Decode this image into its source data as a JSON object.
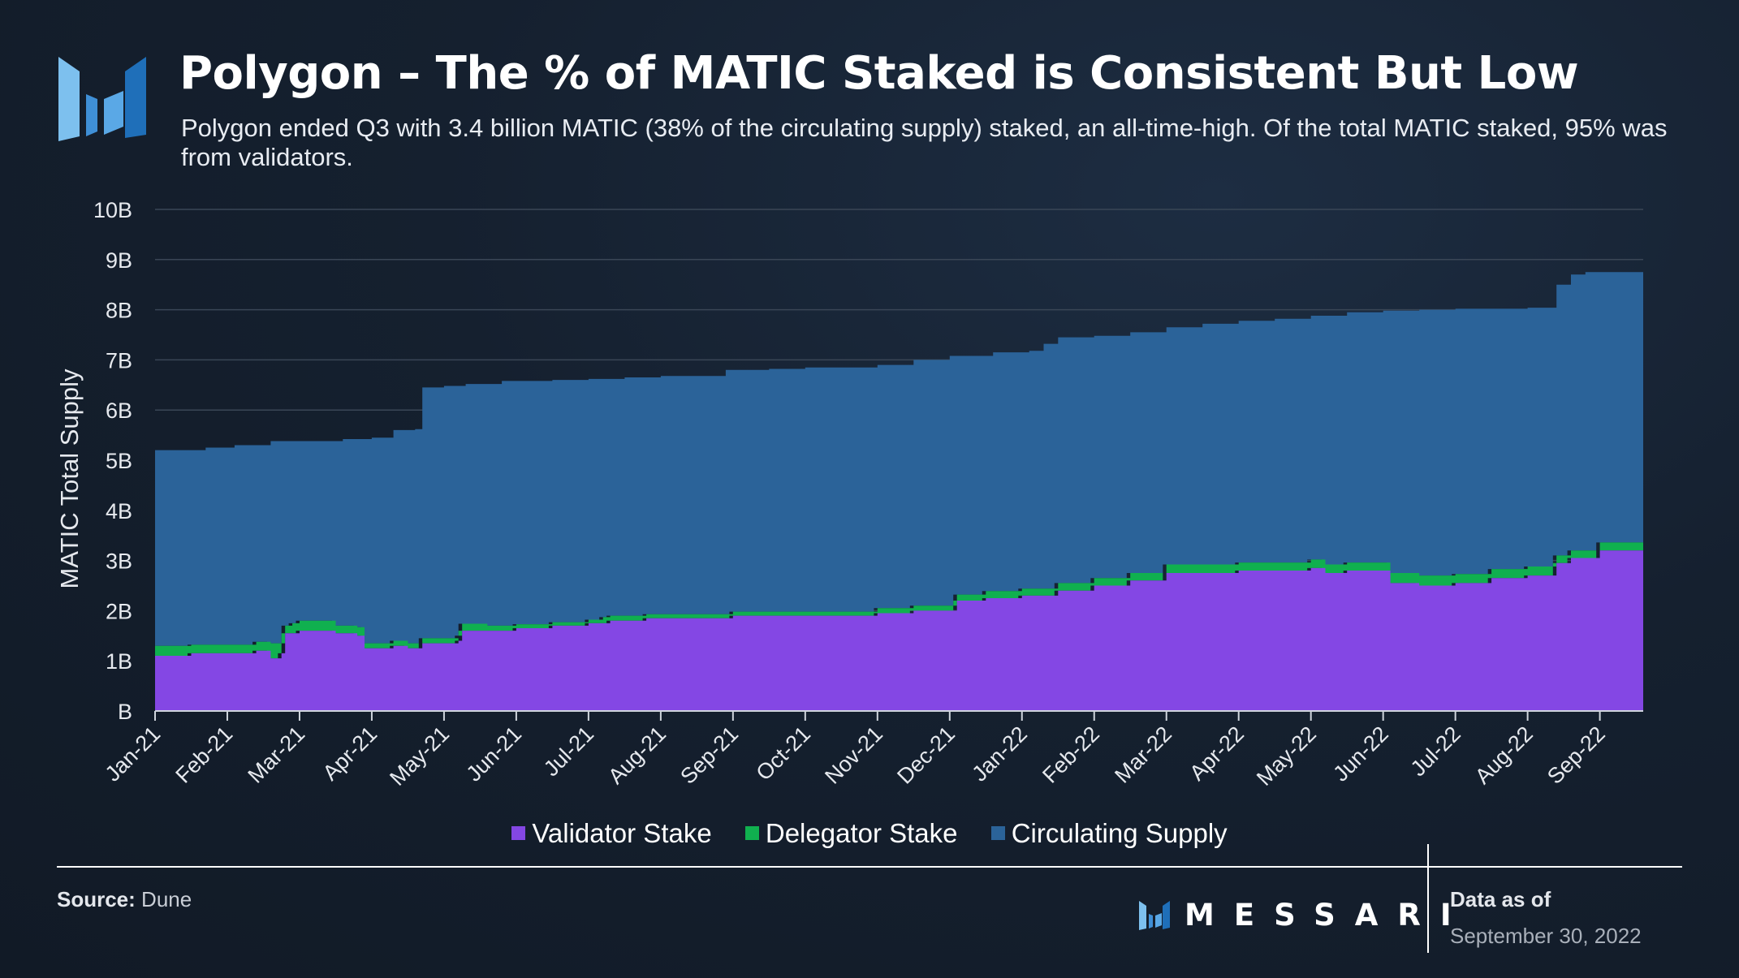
{
  "header": {
    "title": "Polygon – The % of MATIC Staked is Consistent But Low",
    "subtitle": "Polygon ended Q3 with 3.4 billion MATIC (38% of the circulating supply) staked, an all-time-high. Of the total MATIC staked, 95% was from validators."
  },
  "colors": {
    "validator": "#8447e4",
    "delegator": "#10b04f",
    "circulating": "#2b6399",
    "gridline": "#3a4656",
    "logo_light": "#6fb5ea",
    "logo_dark": "#2476bf"
  },
  "chart_data": {
    "type": "area",
    "stacked": true,
    "ylabel": "MATIC Total Supply",
    "xlabel": "",
    "ylim": [
      0,
      10
    ],
    "yticks": [
      "B",
      "1B",
      "2B",
      "3B",
      "4B",
      "5B",
      "6B",
      "7B",
      "8B",
      "9B",
      "10B"
    ],
    "x_ticks": [
      "Jan-21",
      "Feb-21",
      "Mar-21",
      "Apr-21",
      "May-21",
      "Jun-21",
      "Jul-21",
      "Aug-21",
      "Sep-21",
      "Oct-21",
      "Nov-21",
      "Dec-21",
      "Jan-22",
      "Feb-22",
      "Mar-22",
      "Apr-22",
      "May-22",
      "Jun-22",
      "Jul-22",
      "Aug-22",
      "Sep-22"
    ],
    "x_range_months": [
      0,
      20.6
    ],
    "units": "billion MATIC",
    "series": [
      {
        "name": "Validator Stake",
        "points": [
          [
            0,
            1.1
          ],
          [
            0.5,
            1.15
          ],
          [
            1.0,
            1.15
          ],
          [
            1.4,
            1.2
          ],
          [
            1.6,
            1.05
          ],
          [
            1.75,
            1.15
          ],
          [
            1.8,
            1.55
          ],
          [
            1.9,
            1.55
          ],
          [
            2.0,
            1.6
          ],
          [
            2.5,
            1.55
          ],
          [
            2.8,
            1.5
          ],
          [
            2.9,
            1.25
          ],
          [
            3.3,
            1.3
          ],
          [
            3.5,
            1.25
          ],
          [
            3.7,
            1.35
          ],
          [
            4.2,
            1.4
          ],
          [
            4.25,
            1.6
          ],
          [
            4.6,
            1.6
          ],
          [
            5.0,
            1.65
          ],
          [
            5.5,
            1.7
          ],
          [
            6.0,
            1.75
          ],
          [
            6.2,
            1.75
          ],
          [
            6.3,
            1.8
          ],
          [
            6.8,
            1.85
          ],
          [
            7.0,
            1.85
          ],
          [
            7.5,
            1.85
          ],
          [
            8.0,
            1.9
          ],
          [
            8.5,
            1.9
          ],
          [
            9.0,
            1.9
          ],
          [
            10.0,
            1.95
          ],
          [
            10.5,
            2.0
          ],
          [
            11.0,
            2.0
          ],
          [
            11.1,
            2.2
          ],
          [
            11.5,
            2.25
          ],
          [
            12.0,
            2.3
          ],
          [
            12.5,
            2.4
          ],
          [
            13.0,
            2.5
          ],
          [
            13.5,
            2.6
          ],
          [
            14.0,
            2.75
          ],
          [
            14.5,
            2.75
          ],
          [
            15.0,
            2.8
          ],
          [
            15.5,
            2.8
          ],
          [
            16.0,
            2.85
          ],
          [
            16.2,
            2.75
          ],
          [
            16.5,
            2.8
          ],
          [
            17.0,
            2.8
          ],
          [
            17.1,
            2.55
          ],
          [
            17.5,
            2.5
          ],
          [
            18.0,
            2.55
          ],
          [
            18.5,
            2.65
          ],
          [
            19.0,
            2.7
          ],
          [
            19.3,
            2.7
          ],
          [
            19.4,
            2.95
          ],
          [
            19.6,
            3.05
          ],
          [
            20.0,
            3.2
          ],
          [
            20.6,
            3.2
          ]
        ]
      },
      {
        "name": "Delegator Stake",
        "points": [
          [
            0,
            0.2
          ],
          [
            0.5,
            0.17
          ],
          [
            1.0,
            0.17
          ],
          [
            1.4,
            0.18
          ],
          [
            1.6,
            0.3
          ],
          [
            1.75,
            0.2
          ],
          [
            1.8,
            0.15
          ],
          [
            1.9,
            0.2
          ],
          [
            2.0,
            0.2
          ],
          [
            2.5,
            0.15
          ],
          [
            2.8,
            0.17
          ],
          [
            2.9,
            0.1
          ],
          [
            3.3,
            0.1
          ],
          [
            3.5,
            0.1
          ],
          [
            3.7,
            0.1
          ],
          [
            4.2,
            0.1
          ],
          [
            4.25,
            0.14
          ],
          [
            4.6,
            0.1
          ],
          [
            5.0,
            0.08
          ],
          [
            5.5,
            0.07
          ],
          [
            6.0,
            0.07
          ],
          [
            6.2,
            0.12
          ],
          [
            6.3,
            0.1
          ],
          [
            6.8,
            0.08
          ],
          [
            7.0,
            0.08
          ],
          [
            7.5,
            0.08
          ],
          [
            8.0,
            0.08
          ],
          [
            8.5,
            0.08
          ],
          [
            9.0,
            0.08
          ],
          [
            10.0,
            0.1
          ],
          [
            10.5,
            0.1
          ],
          [
            11.0,
            0.1
          ],
          [
            11.1,
            0.12
          ],
          [
            11.5,
            0.14
          ],
          [
            12.0,
            0.14
          ],
          [
            12.5,
            0.15
          ],
          [
            13.0,
            0.15
          ],
          [
            13.5,
            0.15
          ],
          [
            14.0,
            0.17
          ],
          [
            14.5,
            0.17
          ],
          [
            15.0,
            0.16
          ],
          [
            15.5,
            0.16
          ],
          [
            16.0,
            0.17
          ],
          [
            16.2,
            0.17
          ],
          [
            16.5,
            0.16
          ],
          [
            17.0,
            0.16
          ],
          [
            17.1,
            0.2
          ],
          [
            17.5,
            0.2
          ],
          [
            18.0,
            0.18
          ],
          [
            18.5,
            0.18
          ],
          [
            19.0,
            0.18
          ],
          [
            19.3,
            0.18
          ],
          [
            19.4,
            0.15
          ],
          [
            19.6,
            0.15
          ],
          [
            20.0,
            0.16
          ],
          [
            20.6,
            0.16
          ]
        ]
      },
      {
        "name": "Circulating Supply",
        "cumulative_total": true,
        "points": [
          [
            0,
            5.2
          ],
          [
            0.7,
            5.25
          ],
          [
            1.1,
            5.3
          ],
          [
            1.6,
            5.38
          ],
          [
            2.1,
            5.38
          ],
          [
            2.6,
            5.42
          ],
          [
            3.0,
            5.45
          ],
          [
            3.3,
            5.6
          ],
          [
            3.6,
            5.62
          ],
          [
            3.7,
            6.45
          ],
          [
            4.0,
            6.48
          ],
          [
            4.3,
            6.52
          ],
          [
            4.5,
            6.52
          ],
          [
            4.8,
            6.58
          ],
          [
            5.5,
            6.6
          ],
          [
            6.0,
            6.62
          ],
          [
            6.5,
            6.65
          ],
          [
            7.0,
            6.68
          ],
          [
            7.5,
            6.68
          ],
          [
            7.9,
            6.8
          ],
          [
            8.5,
            6.82
          ],
          [
            9.0,
            6.85
          ],
          [
            9.5,
            6.85
          ],
          [
            10.0,
            6.9
          ],
          [
            10.5,
            7.0
          ],
          [
            11.0,
            7.08
          ],
          [
            11.6,
            7.15
          ],
          [
            12.1,
            7.18
          ],
          [
            12.3,
            7.32
          ],
          [
            12.5,
            7.45
          ],
          [
            13.0,
            7.48
          ],
          [
            13.5,
            7.55
          ],
          [
            14.0,
            7.65
          ],
          [
            14.5,
            7.72
          ],
          [
            15.0,
            7.78
          ],
          [
            15.5,
            7.82
          ],
          [
            16.0,
            7.88
          ],
          [
            16.5,
            7.95
          ],
          [
            17.0,
            7.98
          ],
          [
            17.5,
            8.0
          ],
          [
            18.0,
            8.02
          ],
          [
            18.5,
            8.02
          ],
          [
            19.0,
            8.04
          ],
          [
            19.35,
            8.04
          ],
          [
            19.4,
            8.5
          ],
          [
            19.6,
            8.7
          ],
          [
            19.8,
            8.75
          ],
          [
            20.6,
            8.75
          ]
        ]
      }
    ]
  },
  "legend": {
    "items": [
      {
        "label": "Validator Stake"
      },
      {
        "label": "Delegator Stake"
      },
      {
        "label": "Circulating Supply"
      }
    ]
  },
  "footer": {
    "source_label": "Source:",
    "source_value": " Dune",
    "brand": "MESSARI",
    "asof_label": "Data as of",
    "asof_date": "September 30, 2022"
  }
}
